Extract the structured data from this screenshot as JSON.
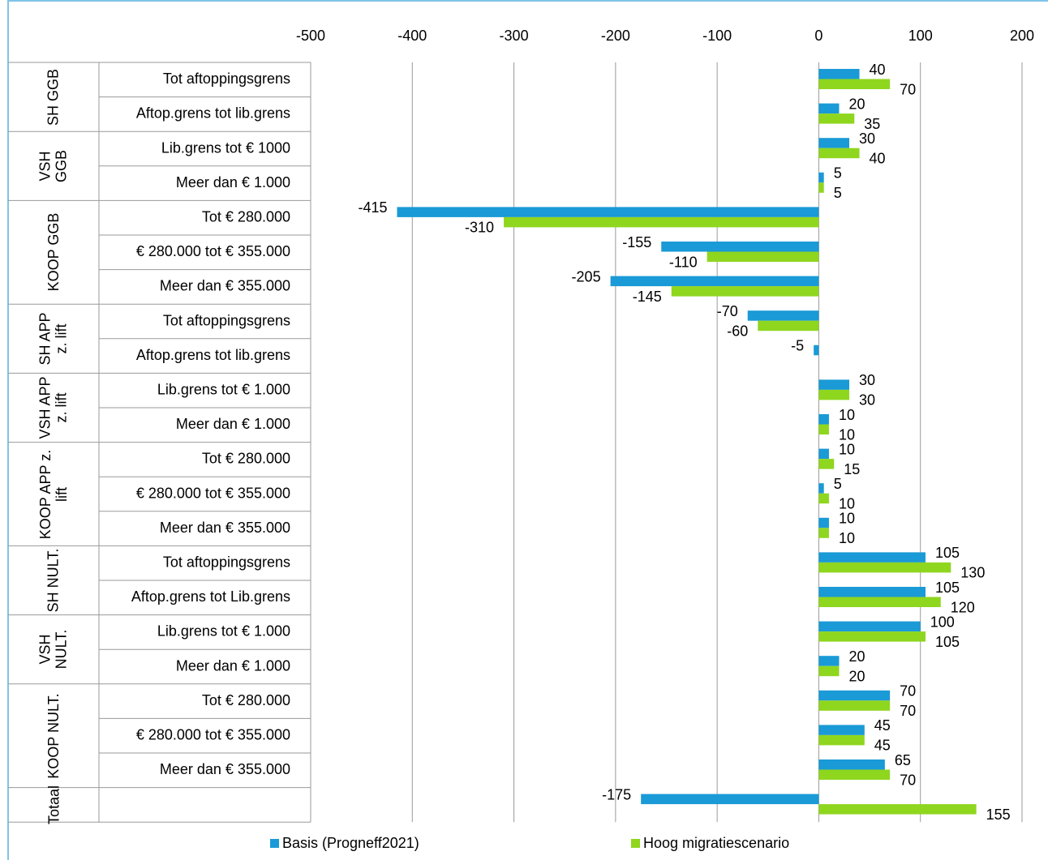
{
  "chart_data": {
    "type": "bar",
    "orientation": "horizontal",
    "groups": [
      {
        "name": "SH GGB",
        "categories": [
          "Tot aftoppingsgrens",
          "Aftop.grens tot lib.grens"
        ]
      },
      {
        "name": "VSH GGB",
        "categories": [
          "Lib.grens tot € 1000",
          "Meer dan € 1.000"
        ]
      },
      {
        "name": "KOOP GGB",
        "categories": [
          "Tot € 280.000",
          "€ 280.000 tot € 355.000",
          "Meer dan € 355.000"
        ]
      },
      {
        "name": "SH APP z. lift",
        "categories": [
          "Tot aftoppingsgrens",
          "Aftop.grens tot lib.grens"
        ]
      },
      {
        "name": "VSH APP z. lift",
        "categories": [
          "Lib.grens tot € 1.000",
          "Meer dan € 1.000"
        ]
      },
      {
        "name": "KOOP APP z. lift",
        "categories": [
          "Tot € 280.000",
          "€ 280.000 tot € 355.000",
          "Meer dan € 355.000"
        ]
      },
      {
        "name": "SH NULT.",
        "categories": [
          "Tot aftoppingsgrens",
          "Aftop.grens tot Lib.grens"
        ]
      },
      {
        "name": "VSH NULT.",
        "categories": [
          "Lib.grens tot € 1.000",
          "Meer dan € 1.000"
        ]
      },
      {
        "name": "KOOP NULT.",
        "categories": [
          "Tot € 280.000",
          "€ 280.000 tot € 355.000",
          "Meer dan € 355.000"
        ]
      },
      {
        "name": "Totaal",
        "categories": [
          null
        ]
      }
    ],
    "series": [
      {
        "name": "Basis (Progneff2021)",
        "color": "#1a9ad6",
        "values": [
          40,
          20,
          30,
          5,
          -415,
          -155,
          -205,
          -70,
          -5,
          30,
          10,
          10,
          5,
          10,
          105,
          105,
          100,
          20,
          70,
          45,
          65,
          -175
        ]
      },
      {
        "name": "Hoog migratiescenario",
        "color": "#8fd61f",
        "values": [
          70,
          35,
          40,
          5,
          -310,
          -110,
          -145,
          -60,
          null,
          30,
          10,
          15,
          10,
          10,
          130,
          120,
          105,
          20,
          70,
          45,
          70,
          155
        ]
      }
    ],
    "xlim": [
      -500,
      200
    ],
    "xticks": [
      -500,
      -400,
      -300,
      -200,
      -100,
      0,
      100,
      200
    ],
    "grid": true,
    "legend": "bottom"
  }
}
